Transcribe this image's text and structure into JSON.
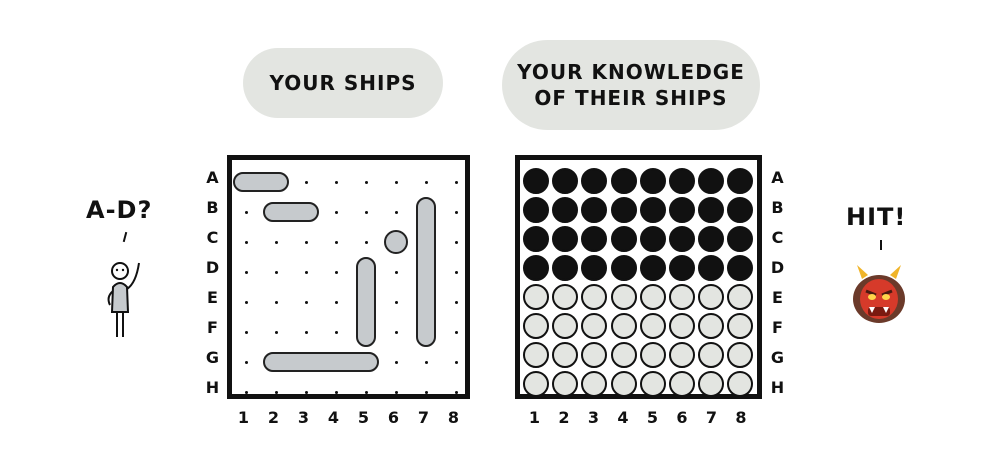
{
  "left_bubble": {
    "text": "YOUR SHIPS"
  },
  "right_bubble": {
    "line1": "YOUR KNOWLEDGE",
    "line2": "OF THEIR SHIPS"
  },
  "rows": [
    "A",
    "B",
    "C",
    "D",
    "E",
    "F",
    "G",
    "H"
  ],
  "cols": [
    "1",
    "2",
    "3",
    "4",
    "5",
    "6",
    "7",
    "8"
  ],
  "player": {
    "speech": "A-D?"
  },
  "opponent": {
    "speech": "HIT!"
  },
  "colors": {
    "ship": "#c6cacd",
    "bubble": "#e3e5e1",
    "unknown": "#111111",
    "miss": "#e3e5e1",
    "demon": "#d63a2a"
  },
  "opponent_view": {
    "unknown_rows": [
      "A",
      "B",
      "C",
      "D"
    ],
    "miss_rows": [
      "E",
      "F",
      "G",
      "H"
    ]
  },
  "own_ships": [
    {
      "cells": [
        "A1",
        "A2"
      ]
    },
    {
      "cells": [
        "B2",
        "B3"
      ]
    },
    {
      "cells": [
        "C6"
      ]
    },
    {
      "cells": [
        "D5",
        "E5",
        "F5"
      ]
    },
    {
      "cells": [
        "B7",
        "C7",
        "D7",
        "E7",
        "F7"
      ]
    },
    {
      "cells": [
        "G2",
        "G3",
        "G4",
        "G5"
      ]
    }
  ],
  "icons": {
    "player": "stick-figure-icon",
    "opponent": "red-oni-demon-icon"
  }
}
